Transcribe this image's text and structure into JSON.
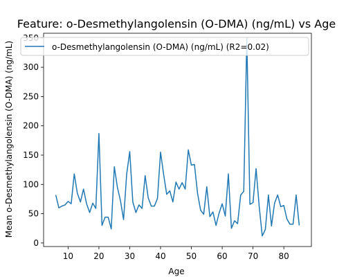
{
  "chart_data": {
    "type": "line",
    "title": "Feature: o-Desmethylangolensin (O-DMA) (ng/mL) vs Age",
    "xlabel": "Age",
    "ylabel": "Mean o-Desmethylangolensin (O-DMA) (ng/mL)",
    "xlim": [
      2.05,
      88.95
    ],
    "ylim": [
      -6.05,
      358.05
    ],
    "xticks": [
      10,
      20,
      30,
      40,
      50,
      60,
      70,
      80
    ],
    "yticks": [
      0,
      50,
      100,
      150,
      200,
      250,
      300,
      350
    ],
    "grid": false,
    "legend_position": "top",
    "series": [
      {
        "name": "o-Desmethylangolensin (O-DMA) (ng/mL) (R2=0.02)",
        "color": "#1f77b4",
        "x": [
          6,
          7,
          8,
          9,
          10,
          11,
          12,
          13,
          14,
          15,
          16,
          17,
          18,
          19,
          20,
          21,
          22,
          23,
          24,
          25,
          26,
          27,
          28,
          29,
          30,
          31,
          32,
          33,
          34,
          35,
          36,
          37,
          38,
          39,
          40,
          41,
          42,
          43,
          44,
          45,
          46,
          47,
          48,
          49,
          50,
          51,
          52,
          53,
          54,
          55,
          56,
          57,
          58,
          59,
          60,
          61,
          62,
          63,
          64,
          65,
          66,
          67,
          68,
          69,
          70,
          71,
          72,
          73,
          74,
          75,
          76,
          77,
          78,
          79,
          80,
          81,
          82,
          83,
          84,
          85
        ],
        "y": [
          82,
          60,
          63,
          65,
          71,
          67,
          118,
          85,
          70,
          92,
          67,
          52,
          68,
          59,
          187,
          30,
          44,
          44,
          24,
          130,
          95,
          72,
          40,
          117,
          156,
          70,
          52,
          65,
          59,
          115,
          77,
          63,
          63,
          76,
          155,
          117,
          83,
          89,
          70,
          104,
          92,
          103,
          92,
          159,
          133,
          134,
          85,
          56,
          49,
          96,
          45,
          53,
          30,
          51,
          67,
          46,
          118,
          25,
          38,
          33,
          82,
          88,
          350,
          66,
          69,
          127,
          63,
          12,
          23,
          82,
          29,
          68,
          82,
          62,
          64,
          41,
          32,
          32,
          82,
          30
        ]
      }
    ]
  }
}
